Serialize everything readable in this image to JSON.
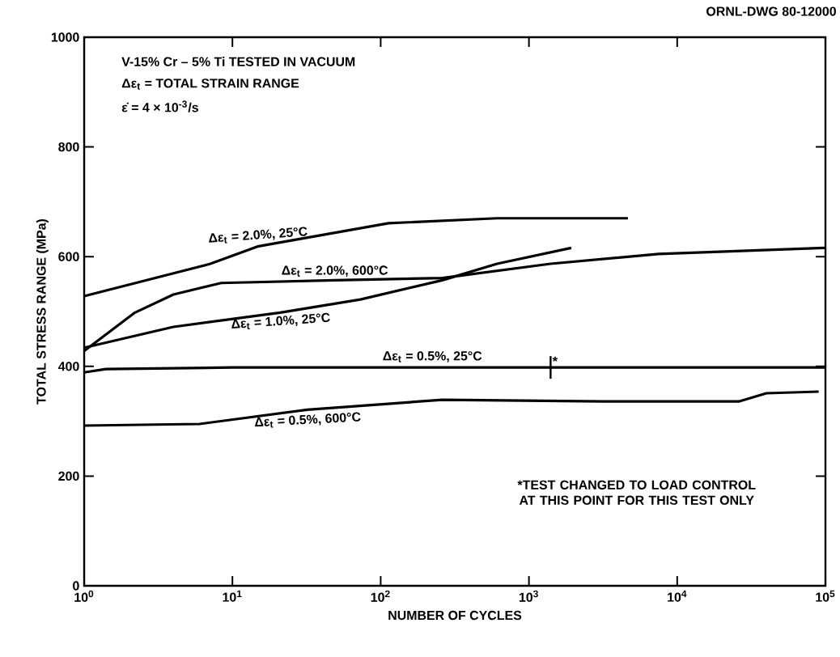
{
  "chart_data": {
    "type": "line",
    "title": "V-15% Cr – 5% Ti TESTED IN VACUUM",
    "xlabel": "NUMBER OF CYCLES",
    "ylabel": "TOTAL STRESS RANGE (MPa)",
    "annotations": [
      "Δε$_{t}$ = TOTAL STRAIN RANGE",
      "ε̇ = 4 × 10$^{-3}$/s",
      {
        "text": "*",
        "x": 1400,
        "y": 398
      },
      "*TEST CHANGED TO LOAD CONTROL AT THIS POINT FOR THIS TEST ONLY",
      "ORNL-DWG 80-12000"
    ],
    "log": "x",
    "xlim": [
      1,
      100000
    ],
    "ylim": [
      0,
      1000
    ],
    "xticks": [
      {
        "value": 1,
        "label": "10$^{0}$"
      },
      {
        "value": 10,
        "label": "10$^{1}$"
      },
      {
        "value": 100,
        "label": "10$^{2}$"
      },
      {
        "value": 1000,
        "label": "10$^{3}$"
      },
      {
        "value": 10000,
        "label": "10$^{4}$"
      },
      {
        "value": 100000,
        "label": "10$^{5}$"
      }
    ],
    "yticks": [
      0,
      200,
      400,
      600,
      800,
      1000
    ],
    "marker": "none",
    "line_style": "solid",
    "series": [
      {
        "name": "Δε$_{t}$ = 2.0%, 25°C",
        "color": "#000000",
        "x": [
          1,
          7.1,
          15,
          113,
          610,
          4650
        ],
        "values": [
          528,
          587,
          619,
          661,
          670,
          670
        ]
      },
      {
        "name": "Δε$_{t}$ = 2.0%, 600°C",
        "color": "#000000",
        "x": [
          1,
          2.2,
          4,
          8.4,
          49,
          260,
          1400,
          7500,
          100000
        ],
        "values": [
          428,
          498,
          531,
          552,
          557,
          561,
          587,
          605,
          616
        ]
      },
      {
        "name": "Δε$_{t}$ = 1.0%, 25°C",
        "color": "#000000",
        "x": [
          1,
          4,
          21,
          73,
          260,
          610,
          1930
        ],
        "values": [
          434,
          472,
          498,
          522,
          557,
          587,
          616
        ]
      },
      {
        "name": "Δε$_{t}$ = 0.5%, 25°C",
        "color": "#000000",
        "x": [
          1,
          1.4,
          10,
          100,
          1400,
          10000,
          100000
        ],
        "values": [
          389,
          395,
          398,
          398,
          398,
          398,
          398
        ]
      },
      {
        "name": "Δε$_{t}$ = 0.5%, 600°C",
        "color": "#000000",
        "x": [
          1,
          6,
          32,
          260,
          3200,
          26000,
          40000,
          90000
        ],
        "values": [
          292,
          295,
          321,
          339,
          336,
          336,
          351,
          354
        ]
      }
    ]
  }
}
